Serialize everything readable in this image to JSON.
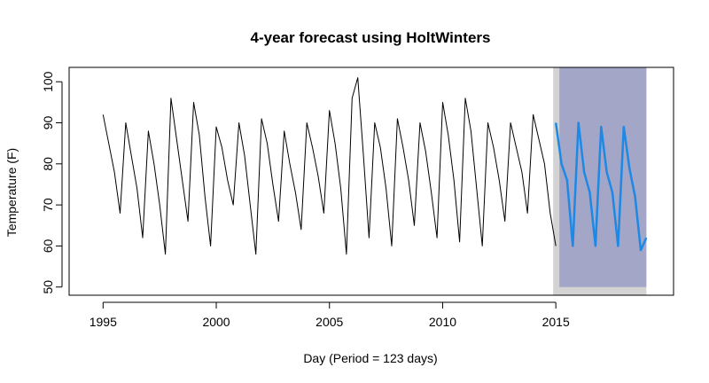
{
  "chart_data": {
    "type": "line",
    "title": "4-year forecast using HoltWinters",
    "xlabel": "Day (Period = 123 days)",
    "ylabel": "Temperature (F)",
    "xlim": [
      1993.5,
      2020.2
    ],
    "ylim": [
      48,
      103.5
    ],
    "x_ticks": [
      1995,
      2000,
      2005,
      2010,
      2015
    ],
    "y_ticks": [
      50,
      60,
      70,
      80,
      90,
      100
    ],
    "grid": false,
    "legend": "none",
    "colors": {
      "observed": "#000000",
      "forecast": "#1e88e5",
      "interval_95": "#d3d3d3",
      "interval_80": "#a3a6c7"
    },
    "series": [
      {
        "role": "observed",
        "x": [
          1995.0,
          1995.25,
          1995.5,
          1995.75,
          1996.0,
          1996.25,
          1996.5,
          1996.75,
          1997.0,
          1997.25,
          1997.5,
          1997.75,
          1998.0,
          1998.25,
          1998.5,
          1998.75,
          1999.0,
          1999.25,
          1999.5,
          1999.75,
          2000.0,
          2000.25,
          2000.5,
          2000.75,
          2001.0,
          2001.25,
          2001.5,
          2001.75,
          2002.0,
          2002.25,
          2002.5,
          2002.75,
          2003.0,
          2003.25,
          2003.5,
          2003.75,
          2004.0,
          2004.25,
          2004.5,
          2004.75,
          2005.0,
          2005.25,
          2005.5,
          2005.75,
          2006.0,
          2006.25,
          2006.5,
          2006.75,
          2007.0,
          2007.25,
          2007.5,
          2007.75,
          2008.0,
          2008.25,
          2008.5,
          2008.75,
          2009.0,
          2009.25,
          2009.5,
          2009.75,
          2010.0,
          2010.25,
          2010.5,
          2010.75,
          2011.0,
          2011.25,
          2011.5,
          2011.75,
          2012.0,
          2012.25,
          2012.5,
          2012.75,
          2013.0,
          2013.25,
          2013.5,
          2013.75,
          2014.0,
          2014.25,
          2014.5,
          2014.75,
          2015.0
        ],
        "y": [
          92,
          85,
          78,
          68,
          90,
          82,
          74,
          62,
          88,
          80,
          70,
          58,
          96,
          86,
          76,
          66,
          95,
          87,
          72,
          60,
          89,
          84,
          76,
          70,
          90,
          82,
          70,
          58,
          91,
          85,
          75,
          66,
          88,
          80,
          73,
          64,
          90,
          84,
          77,
          68,
          93,
          85,
          74,
          58,
          96,
          101,
          82,
          62,
          90,
          84,
          74,
          60,
          91,
          84,
          76,
          65,
          90,
          83,
          73,
          62,
          95,
          87,
          76,
          61,
          96,
          88,
          74,
          60,
          90,
          84,
          76,
          66,
          90,
          84,
          78,
          68,
          92,
          86,
          80,
          68,
          60
        ]
      },
      {
        "role": "forecast",
        "x": [
          2015.0,
          2015.25,
          2015.5,
          2015.75,
          2016.0,
          2016.25,
          2016.5,
          2016.75,
          2017.0,
          2017.25,
          2017.5,
          2017.75,
          2018.0,
          2018.25,
          2018.5,
          2018.75,
          2019.0
        ],
        "y": [
          90,
          80,
          76,
          60,
          90,
          78,
          73,
          60,
          89,
          78,
          73,
          60,
          89,
          79,
          72,
          59,
          62
        ]
      }
    ],
    "intervals": {
      "x": [
        2015.0,
        2019.0
      ],
      "upper_95": 103.5,
      "lower_95": 48,
      "upper_80": 103.5,
      "lower_80": 50
    }
  }
}
